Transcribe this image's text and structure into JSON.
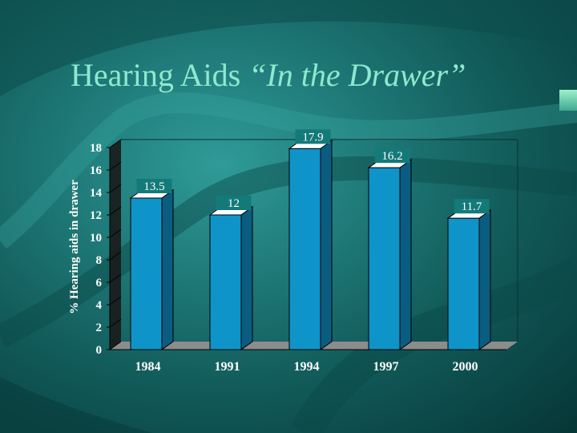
{
  "slide": {
    "title_plain": "Hearing Aids ",
    "title_italic": "“In the Drawer”",
    "colors": {
      "title": "#8fe8cf",
      "background": "#1f7a78",
      "bar_front": "#0f94c9",
      "bar_side": "#0a5d80",
      "bar_top": "#ffffff",
      "floor": "#8c8c8c",
      "wall_side": "#1a1a1a",
      "axis_text": "#ffffff",
      "data_label_bg": "#137a79"
    }
  },
  "chart_data": {
    "type": "bar",
    "title": "",
    "xlabel": "",
    "ylabel": "% Hearing aids in drawer",
    "categories": [
      "1984",
      "1991",
      "1994",
      "1997",
      "2000"
    ],
    "values": [
      13.5,
      12,
      17.9,
      16.2,
      11.7
    ],
    "data_labels": [
      "13.5",
      "12",
      "17.9",
      "16.2",
      "11.7"
    ],
    "ylim": [
      0,
      18
    ],
    "yticks": [
      "0",
      "2",
      "4",
      "6",
      "8",
      "10",
      "12",
      "14",
      "16",
      "18"
    ],
    "grid": false,
    "legend": "none",
    "style": "3d"
  }
}
